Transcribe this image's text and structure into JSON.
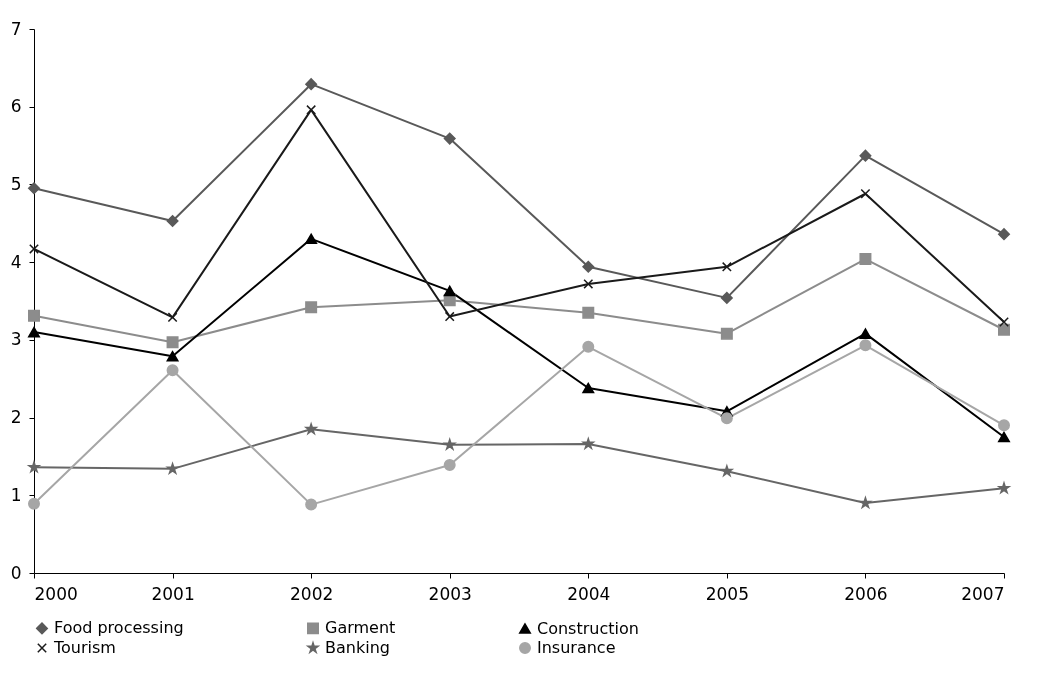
{
  "chart_data": {
    "type": "line",
    "x": [
      2000,
      2001,
      2002,
      2003,
      2004,
      2005,
      2006,
      2007
    ],
    "xlim": [
      2000,
      2007
    ],
    "xticks": [
      2000,
      2001,
      2002,
      2003,
      2004,
      2005,
      2006,
      2007
    ],
    "ylim": [
      0,
      7
    ],
    "yticks": [
      0,
      1,
      2,
      3,
      4,
      5,
      6,
      7
    ],
    "grid": false,
    "legend": "bottom",
    "line_style": "solid",
    "series": [
      {
        "name": "Food processing",
        "color": "#595959",
        "marker": "diamond",
        "values": [
          4.95,
          4.53,
          6.29,
          5.59,
          3.94,
          3.54,
          5.37,
          4.36
        ]
      },
      {
        "name": "Garment",
        "color": "#8c8c8c",
        "marker": "square",
        "values": [
          3.31,
          2.97,
          3.42,
          3.51,
          3.35,
          3.08,
          4.04,
          3.13
        ]
      },
      {
        "name": "Construction",
        "color": "#000000",
        "marker": "triangle",
        "values": [
          3.1,
          2.79,
          4.3,
          3.63,
          2.38,
          2.08,
          3.08,
          1.75
        ]
      },
      {
        "name": "Tourism",
        "color": "#1a1a1a",
        "marker": "cross",
        "values": [
          4.17,
          3.29,
          5.96,
          3.3,
          3.72,
          3.94,
          4.88,
          3.23
        ]
      },
      {
        "name": "Banking",
        "color": "#666666",
        "marker": "star",
        "values": [
          1.36,
          1.34,
          1.85,
          1.65,
          1.66,
          1.31,
          0.9,
          1.09
        ]
      },
      {
        "name": "Insurance",
        "color": "#a6a6a6",
        "marker": "circle",
        "values": [
          0.89,
          2.61,
          0.88,
          1.39,
          2.91,
          1.99,
          2.93,
          1.9
        ]
      }
    ]
  }
}
